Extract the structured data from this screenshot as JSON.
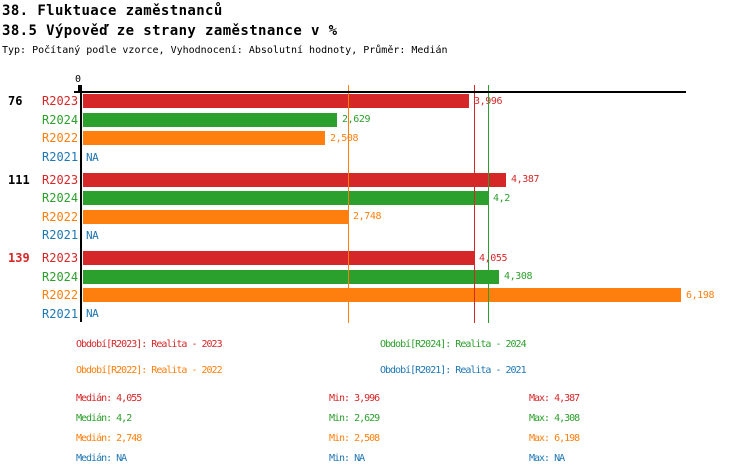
{
  "header": {
    "title": "38. Fluktuace zaměstnanců",
    "subtitle": "38.5 Výpověď ze strany zaměstnance v %",
    "type_info": "Typ: Počítaný podle vzorce, Vyhodnocení: Absolutní hodnoty, Průměr: Medián"
  },
  "colors": {
    "r2023": "#d62728",
    "r2024": "#2ca02c",
    "r2022": "#ff7f0e",
    "r2021": "#1f77b4",
    "axis": "#000000",
    "group_default": "#000000",
    "group_highlight": "#d62728"
  },
  "chart_data": {
    "type": "bar",
    "orientation": "horizontal",
    "title": "38. Fluktuace zaměstnanců",
    "subtitle": "38.5 Výpověď ze strany zaměstnance v %",
    "axis_zero_label": "0",
    "xlim": [
      0,
      6.25
    ],
    "grid": false,
    "legend_position": "bottom",
    "series_order": [
      "R2023",
      "R2024",
      "R2022",
      "R2021"
    ],
    "na_label": "NA",
    "groups": [
      {
        "label": "76",
        "highlight": false,
        "bars": [
          {
            "series": "R2023",
            "value": 3.996,
            "label": "3,996"
          },
          {
            "series": "R2024",
            "value": 2.629,
            "label": "2,629"
          },
          {
            "series": "R2022",
            "value": 2.508,
            "label": "2,508"
          },
          {
            "series": "R2021",
            "value": null,
            "label": "NA"
          }
        ]
      },
      {
        "label": "111",
        "highlight": false,
        "bars": [
          {
            "series": "R2023",
            "value": 4.387,
            "label": "4,387"
          },
          {
            "series": "R2024",
            "value": 4.2,
            "label": "4,2"
          },
          {
            "series": "R2022",
            "value": 2.748,
            "label": "2,748"
          },
          {
            "series": "R2021",
            "value": null,
            "label": "NA"
          }
        ]
      },
      {
        "label": "139",
        "highlight": true,
        "bars": [
          {
            "series": "R2023",
            "value": 4.055,
            "label": "4,055"
          },
          {
            "series": "R2024",
            "value": 4.308,
            "label": "4,308"
          },
          {
            "series": "R2022",
            "value": 6.198,
            "label": "6,198"
          },
          {
            "series": "R2021",
            "value": null,
            "label": "NA"
          }
        ]
      }
    ],
    "median_lines": [
      {
        "series": "R2022",
        "value": 2.748
      },
      {
        "series": "R2023",
        "value": 4.055
      },
      {
        "series": "R2024",
        "value": 4.2
      }
    ]
  },
  "legend": {
    "columns": [
      [
        {
          "series": "R2023",
          "text": "Období[R2023]: Realita - 2023"
        },
        {
          "series": "R2022",
          "text": "Období[R2022]: Realita - 2022"
        }
      ],
      [
        {
          "series": "R2024",
          "text": "Období[R2024]: Realita - 2024"
        },
        {
          "series": "R2021",
          "text": "Období[R2021]: Realita - 2021"
        }
      ]
    ]
  },
  "stats": {
    "rows": [
      {
        "series": "R2023",
        "median": {
          "label": "Medián",
          "value": "4,055"
        },
        "min": {
          "label": "Min",
          "value": "3,996"
        },
        "max": {
          "label": "Max",
          "value": "4,387"
        }
      },
      {
        "series": "R2024",
        "median": {
          "label": "Medián",
          "value": "4,2"
        },
        "min": {
          "label": "Min",
          "value": "2,629"
        },
        "max": {
          "label": "Max",
          "value": "4,308"
        }
      },
      {
        "series": "R2022",
        "median": {
          "label": "Medián",
          "value": "2,748"
        },
        "min": {
          "label": "Min",
          "value": "2,508"
        },
        "max": {
          "label": "Max",
          "value": "6,198"
        }
      },
      {
        "series": "R2021",
        "median": {
          "label": "Medián",
          "value": "NA"
        },
        "min": {
          "label": "Min",
          "value": "NA"
        },
        "max": {
          "label": "Max",
          "value": "NA"
        }
      }
    ]
  }
}
